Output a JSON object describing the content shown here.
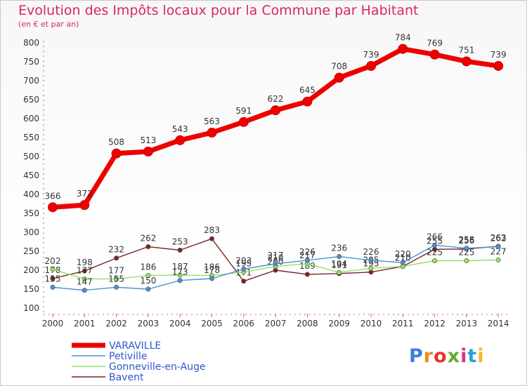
{
  "title": "Evolution des Impôts locaux pour la Commune par Habitant",
  "subtitle": "(en € et par an)",
  "logo": {
    "text": "Proxiti",
    "colors": [
      "#3b7fd8",
      "#f08a1c",
      "#e5352a",
      "#6aa632",
      "#d93580",
      "#2aa0d8",
      "#f0b91c"
    ]
  },
  "chart_data": {
    "type": "line",
    "x": [
      "2000",
      "2001",
      "2002",
      "2003",
      "2004",
      "2005",
      "2006",
      "2007",
      "2008",
      "2009",
      "2010",
      "2011",
      "2012",
      "2013",
      "2014"
    ],
    "ylim": [
      100,
      800
    ],
    "yticks": [
      100,
      150,
      200,
      250,
      300,
      350,
      400,
      450,
      500,
      550,
      600,
      650,
      700,
      750,
      800
    ],
    "grid": false,
    "legend_position": "bottom-left",
    "series": [
      {
        "name": "VARAVILLE",
        "color": "#ee0000",
        "values": [
          366,
          372,
          508,
          513,
          543,
          563,
          591,
          622,
          645,
          708,
          739,
          784,
          769,
          751,
          739
        ]
      },
      {
        "name": "Petiville",
        "color": "#4a90d0",
        "values": [
          155,
          147,
          155,
          150,
          173,
          178,
          203,
          217,
          226,
          236,
          226,
          220,
          266,
          258,
          262
        ]
      },
      {
        "name": "Gonneville-en-Auge",
        "color": "#99dd66",
        "values": [
          202,
          177,
          177,
          186,
          187,
          186,
          195,
          210,
          217,
          194,
          205,
          210,
          225,
          225,
          227
        ]
      },
      {
        "name": "Bavent",
        "color": "#7a2424",
        "values": [
          178,
          198,
          232,
          262,
          253,
          283,
          171,
          200,
          189,
          191,
          195,
          210,
          255,
          256,
          263
        ]
      }
    ]
  }
}
